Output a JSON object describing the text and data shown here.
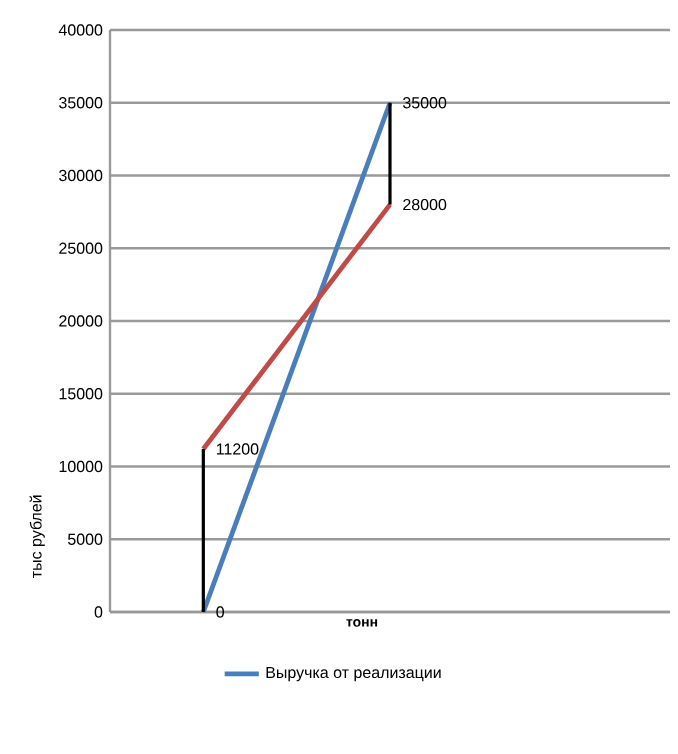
{
  "chart_data": {
    "type": "line",
    "xlabel": "тонн",
    "ylabel": "тыс рублей",
    "categories": [
      null,
      null,
      null
    ],
    "series": [
      {
        "name": "Выручка от реализации",
        "color": "#4a7ebb",
        "values": [
          0,
          35000,
          null
        ]
      },
      {
        "color": "#be4b48",
        "values": [
          11200,
          28000,
          null
        ]
      },
      {
        "type": "bar",
        "color": "#000000",
        "base": [
          0,
          28000,
          null
        ],
        "values": [
          11200,
          7000,
          null
        ]
      }
    ],
    "ylim": [
      0,
      40000
    ],
    "yticks": [
      0,
      5000,
      10000,
      15000,
      20000,
      25000,
      30000,
      35000,
      40000
    ],
    "grid": "y",
    "legend": "bottom",
    "annotations": [
      "35000",
      "28000",
      "11200",
      "0"
    ]
  }
}
